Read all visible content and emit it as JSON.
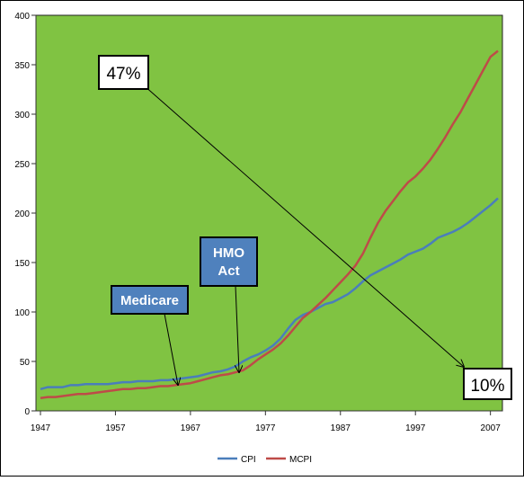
{
  "chart_data": {
    "type": "line",
    "title": "",
    "xlabel": "",
    "ylabel": "",
    "x_ticks": [
      "1947",
      "1957",
      "1967",
      "1977",
      "1987",
      "1997",
      "2007"
    ],
    "ylim": [
      0,
      400
    ],
    "y_ticks": [
      "0",
      "50",
      "100",
      "150",
      "200",
      "250",
      "300",
      "350",
      "400"
    ],
    "plot_background": "#80c342",
    "grid": false,
    "legend_position": "bottom",
    "series": [
      {
        "name": "CPI",
        "color": "#4a7ebb",
        "x": [
          1947,
          1948,
          1949,
          1950,
          1951,
          1952,
          1953,
          1954,
          1955,
          1956,
          1957,
          1958,
          1959,
          1960,
          1961,
          1962,
          1963,
          1964,
          1965,
          1966,
          1967,
          1968,
          1969,
          1970,
          1971,
          1972,
          1973,
          1974,
          1975,
          1976,
          1977,
          1978,
          1979,
          1980,
          1981,
          1982,
          1983,
          1984,
          1985,
          1986,
          1987,
          1988,
          1989,
          1990,
          1991,
          1992,
          1993,
          1994,
          1995,
          1996,
          1997,
          1998,
          1999,
          2000,
          2001,
          2002,
          2003,
          2004,
          2005,
          2006,
          2007,
          2008
        ],
        "values": [
          22,
          24,
          24,
          24,
          26,
          26,
          27,
          27,
          27,
          27,
          28,
          29,
          29,
          30,
          30,
          30,
          31,
          31,
          32,
          33,
          34,
          35,
          37,
          39,
          40,
          42,
          45,
          50,
          54,
          57,
          61,
          66,
          73,
          83,
          92,
          97,
          100,
          104,
          108,
          110,
          114,
          118,
          124,
          131,
          137,
          141,
          145,
          149,
          153,
          158,
          161,
          164,
          169,
          175,
          178,
          181,
          185,
          190,
          196,
          202,
          208,
          215
        ]
      },
      {
        "name": "MCPI",
        "color": "#be4b48",
        "x": [
          1947,
          1948,
          1949,
          1950,
          1951,
          1952,
          1953,
          1954,
          1955,
          1956,
          1957,
          1958,
          1959,
          1960,
          1961,
          1962,
          1963,
          1964,
          1965,
          1966,
          1967,
          1968,
          1969,
          1970,
          1971,
          1972,
          1973,
          1974,
          1975,
          1976,
          1977,
          1978,
          1979,
          1980,
          1981,
          1982,
          1983,
          1984,
          1985,
          1986,
          1987,
          1988,
          1989,
          1990,
          1991,
          1992,
          1993,
          1994,
          1995,
          1996,
          1997,
          1998,
          1999,
          2000,
          2001,
          2002,
          2003,
          2004,
          2005,
          2006,
          2007,
          2008
        ],
        "values": [
          13,
          14,
          14,
          15,
          16,
          17,
          17,
          18,
          19,
          20,
          21,
          22,
          22,
          23,
          23,
          24,
          25,
          25,
          26,
          27,
          28,
          30,
          32,
          34,
          36,
          37,
          39,
          41,
          46,
          52,
          57,
          62,
          68,
          76,
          85,
          94,
          100,
          107,
          114,
          122,
          130,
          138,
          147,
          159,
          175,
          190,
          202,
          212,
          222,
          231,
          237,
          245,
          254,
          265,
          277,
          290,
          302,
          316,
          330,
          344,
          358,
          364
        ]
      }
    ],
    "annotations": [
      {
        "label": "47%"
      },
      {
        "label": "10%"
      },
      {
        "label": "Medicare"
      },
      {
        "label": "HMO Act"
      }
    ]
  }
}
